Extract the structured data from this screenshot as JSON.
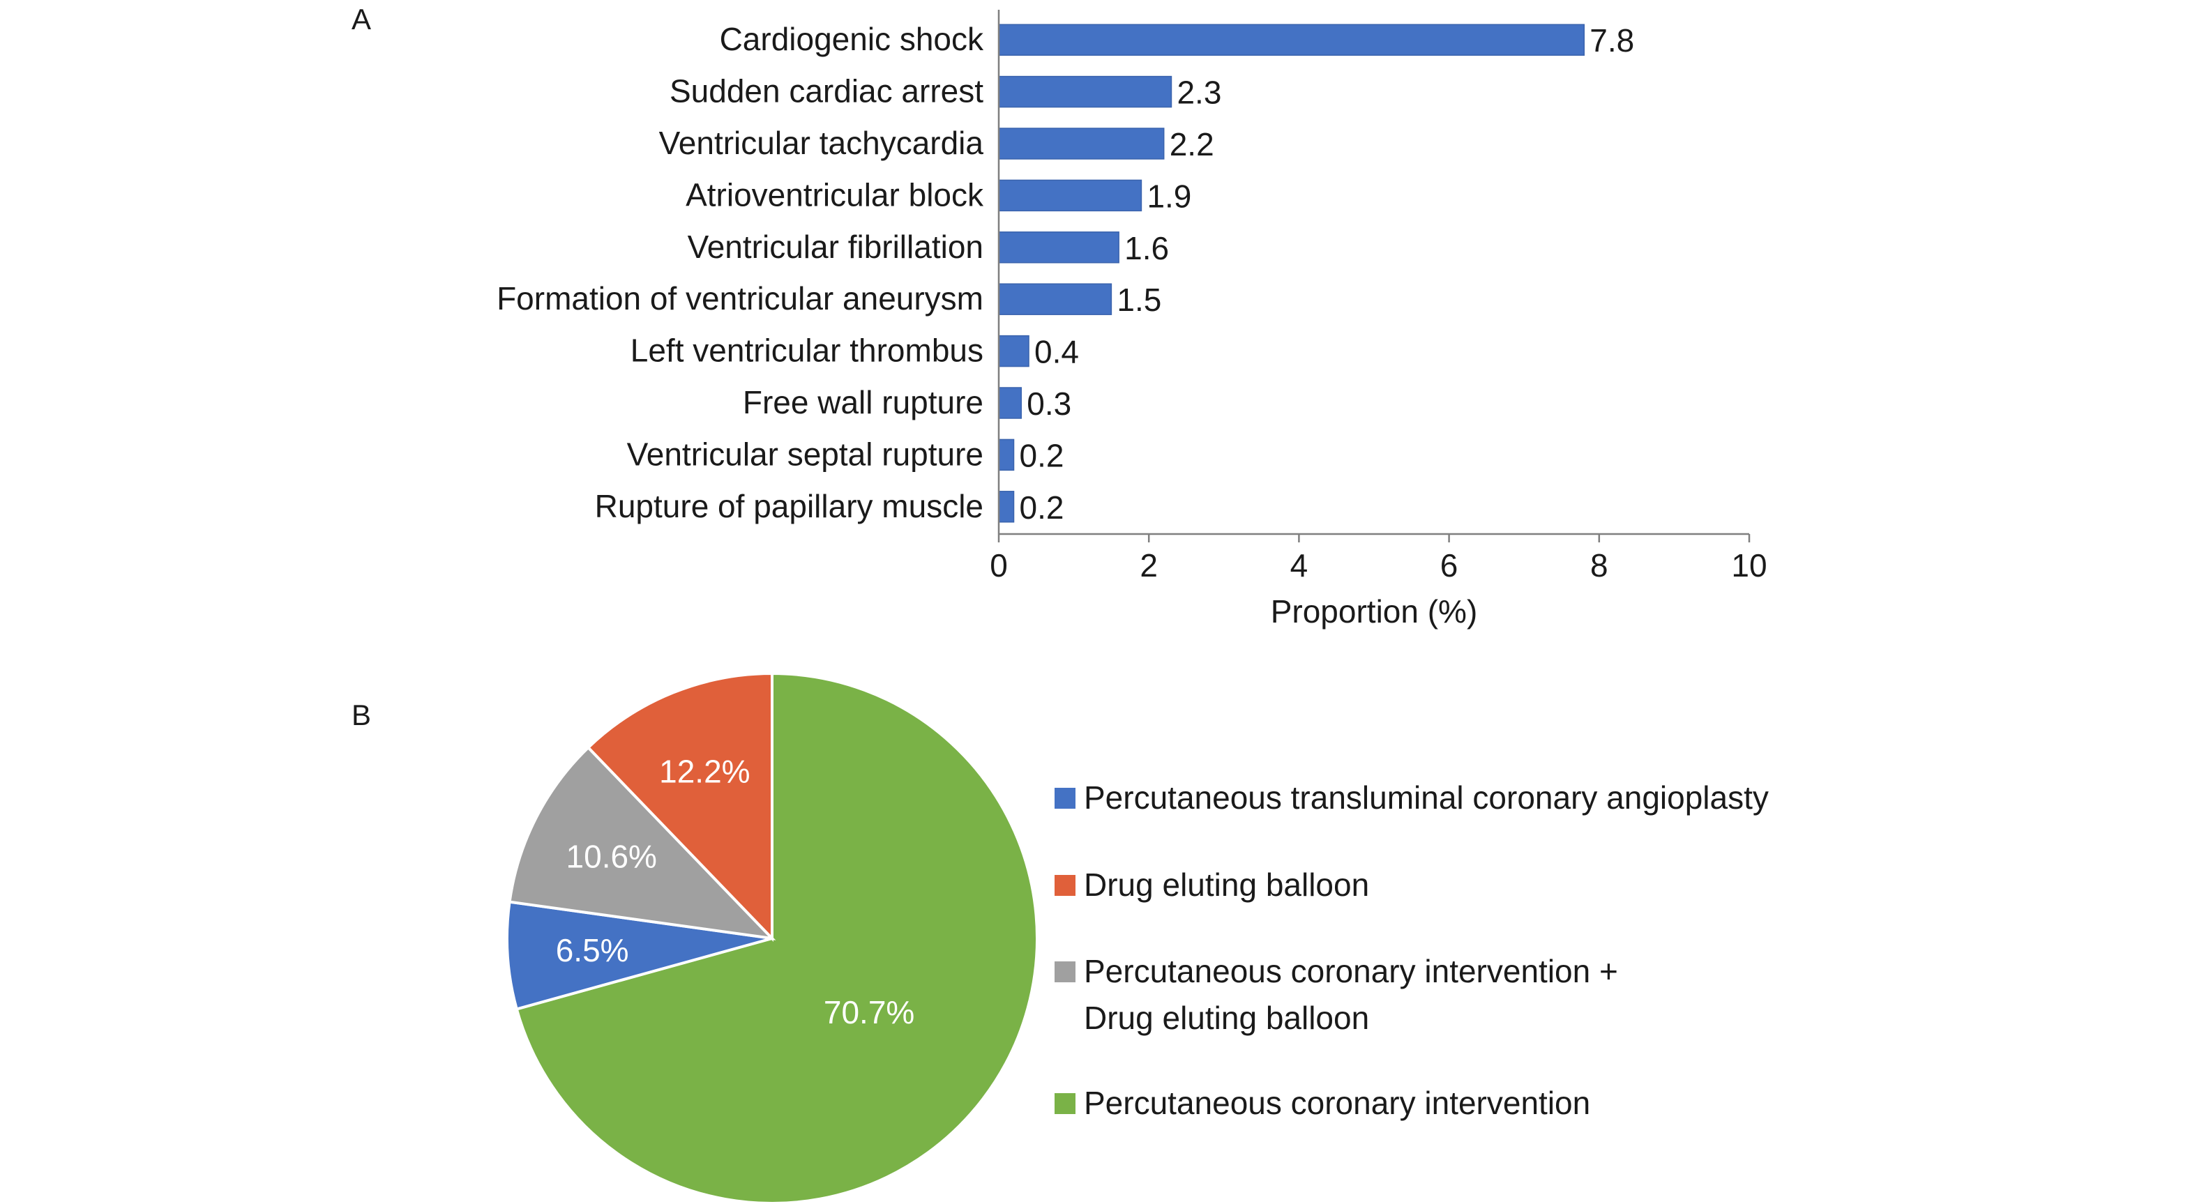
{
  "panels": {
    "a_label": "A",
    "b_label": "B"
  },
  "chart_data": [
    {
      "type": "bar",
      "orientation": "horizontal",
      "panel": "A",
      "categories": [
        "Cardiogenic shock",
        "Sudden cardiac arrest",
        "Ventricular tachycardia",
        "Atrioventricular block",
        "Ventricular fibrillation",
        "Formation of ventricular aneurysm",
        "Left ventricular thrombus",
        "Free wall rupture",
        "Ventricular septal rupture",
        "Rupture of papillary muscle"
      ],
      "values": [
        7.8,
        2.3,
        2.2,
        1.9,
        1.6,
        1.5,
        0.4,
        0.3,
        0.2,
        0.2
      ],
      "value_labels": [
        "7.8",
        "2.3",
        "2.2",
        "1.9",
        "1.6",
        "1.5",
        "0.4",
        "0.3",
        "0.2",
        "0.2"
      ],
      "xlabel": "Proportion (%)",
      "xlim": [
        0,
        10
      ],
      "xticks": [
        0,
        2,
        4,
        6,
        8,
        10
      ],
      "xtick_labels": [
        "0",
        "2",
        "4",
        "6",
        "8",
        "10"
      ],
      "grid": false,
      "bar_color": "#4472C4"
    },
    {
      "type": "pie",
      "panel": "B",
      "slices": [
        {
          "label": "Percutaneous transluminal coronary angioplasty",
          "value": 6.5,
          "display": "6.5%",
          "color": "#4472C4"
        },
        {
          "label": "Drug eluting balloon",
          "value": 12.2,
          "display": "12.2%",
          "color": "#E0603A"
        },
        {
          "label": "Percutaneous coronary intervention + Drug eluting balloon",
          "value": 10.6,
          "display": "10.6%",
          "color": "#A0A0A0"
        },
        {
          "label": "Percutaneous coronary intervention",
          "value": 70.7,
          "display": "70.7%",
          "color": "#7AB247"
        }
      ],
      "legend_items": [
        {
          "lines": [
            "Percutaneous transluminal coronary angioplasty"
          ],
          "color": "#4472C4"
        },
        {
          "lines": [
            "Drug eluting balloon"
          ],
          "color": "#E0603A"
        },
        {
          "lines": [
            "Percutaneous coronary intervention +",
            "Drug eluting balloon"
          ],
          "color": "#A0A0A0"
        },
        {
          "lines": [
            "Percutaneous coronary intervention"
          ],
          "color": "#7AB247"
        }
      ],
      "slice_order_clockwise_from_top": [
        3,
        0,
        2,
        1
      ],
      "legend_position": "right"
    }
  ]
}
